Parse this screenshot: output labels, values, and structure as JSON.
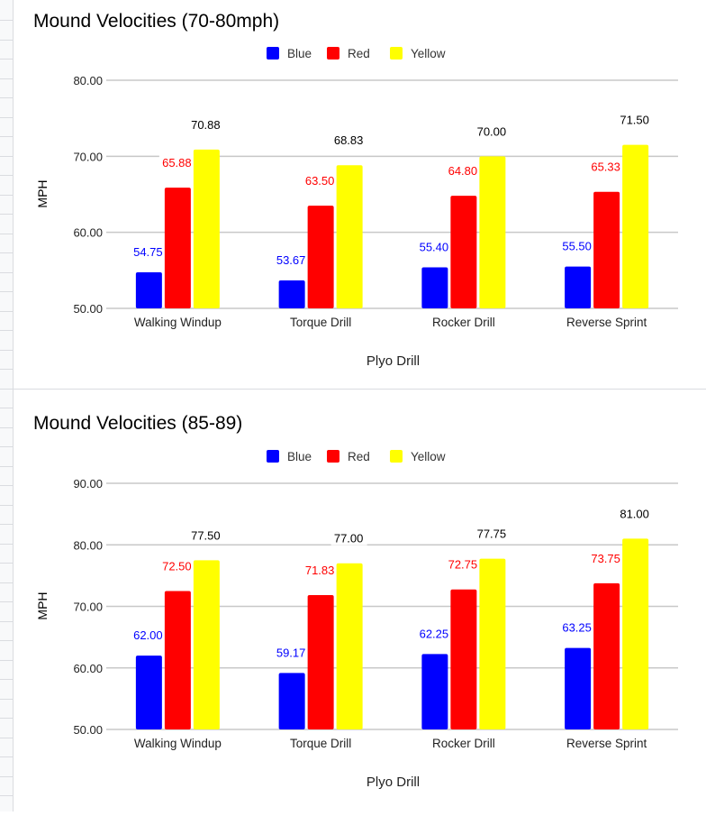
{
  "colors": {
    "blue": "#0000ff",
    "red": "#ff0000",
    "yellow": "#ffff00",
    "label_blue": "#0000ff",
    "label_red": "#ff0000",
    "label_yellow": "#000000",
    "grid": "#c8c8c8"
  },
  "chart_data": [
    {
      "type": "bar",
      "title": "Mound Velocities (70-80mph)",
      "xlabel": "Plyo Drill",
      "ylabel": "MPH",
      "categories": [
        "Walking Windup",
        "Torque Drill",
        "Rocker Drill",
        "Reverse Sprint"
      ],
      "series": [
        {
          "name": "Blue",
          "values": [
            54.75,
            53.67,
            55.4,
            55.5
          ],
          "labels": [
            "54.75",
            "53.67",
            "55.40",
            "55.50"
          ]
        },
        {
          "name": "Red",
          "values": [
            65.88,
            63.5,
            64.8,
            65.33
          ],
          "labels": [
            "65.88",
            "63.50",
            "64.80",
            "65.33"
          ]
        },
        {
          "name": "Yellow",
          "values": [
            70.88,
            68.83,
            70.0,
            71.5
          ],
          "labels": [
            "70.88",
            "68.83",
            "70.00",
            "71.50"
          ]
        }
      ],
      "ylim": [
        50,
        80
      ],
      "yticks": [
        "50.00",
        "60.00",
        "70.00",
        "80.00"
      ],
      "grid": true,
      "legend": "top-center"
    },
    {
      "type": "bar",
      "title": "Mound Velocities (85-89)",
      "xlabel": "Plyo Drill",
      "ylabel": "MPH",
      "categories": [
        "Walking Windup",
        "Torque Drill",
        "Rocker Drill",
        "Reverse Sprint"
      ],
      "series": [
        {
          "name": "Blue",
          "values": [
            62.0,
            59.17,
            62.25,
            63.25
          ],
          "labels": [
            "62.00",
            "59.17",
            "62.25",
            "63.25"
          ]
        },
        {
          "name": "Red",
          "values": [
            72.5,
            71.83,
            72.75,
            73.75
          ],
          "labels": [
            "72.50",
            "71.83",
            "72.75",
            "73.75"
          ]
        },
        {
          "name": "Yellow",
          "values": [
            77.5,
            77.0,
            77.75,
            81.0
          ],
          "labels": [
            "77.50",
            "77.00",
            "77.75",
            "81.00"
          ]
        }
      ],
      "ylim": [
        50,
        90
      ],
      "yticks": [
        "50.00",
        "60.00",
        "70.00",
        "80.00",
        "90.00"
      ],
      "grid": true,
      "legend": "top-center"
    }
  ]
}
